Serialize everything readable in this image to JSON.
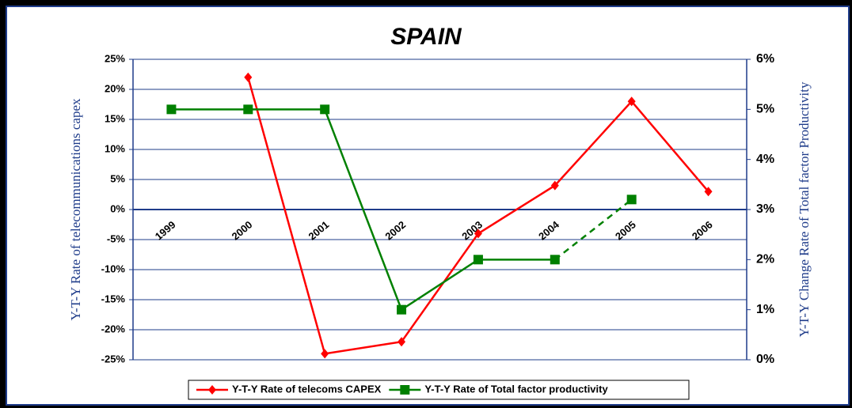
{
  "chart_data": {
    "type": "line",
    "title": "SPAIN",
    "y_label": "Y-T-Y Rate of telecommunications capex",
    "y2_label": "Y-T-Y Change Rate of Total factor Productivity",
    "categories": [
      "1999",
      "2000",
      "2001",
      "2002",
      "2003",
      "2004",
      "2005",
      "2006"
    ],
    "series": [
      {
        "name": "Y-T-Y Rate of telecoms CAPEX",
        "color": "#ff0000",
        "marker": "diamond",
        "values": [
          null,
          22,
          -24,
          -22,
          -4,
          4,
          18,
          3
        ]
      },
      {
        "name": "Y-T-Y Rate of Total factor productivity",
        "color": "#008000",
        "marker": "square",
        "axis": "y2",
        "dashed_last_segment": true,
        "values": [
          5,
          5,
          5,
          1,
          2,
          2,
          3.2,
          null
        ]
      }
    ],
    "ylim": [
      -25,
      25
    ],
    "yticks": [
      {
        "value": -25,
        "label": "-25%"
      },
      {
        "value": -20,
        "label": "-20%"
      },
      {
        "value": -15,
        "label": "-15%"
      },
      {
        "value": -10,
        "label": "-10%"
      },
      {
        "value": -5,
        "label": "-5%"
      },
      {
        "value": 0,
        "label": "0%"
      },
      {
        "value": 5,
        "label": "5%"
      },
      {
        "value": 10,
        "label": "10%"
      },
      {
        "value": 15,
        "label": "15%"
      },
      {
        "value": 20,
        "label": "20%"
      },
      {
        "value": 25,
        "label": "25%"
      }
    ],
    "y2lim": [
      0,
      6
    ],
    "y2ticks": [
      {
        "value": 0,
        "label": "0%"
      },
      {
        "value": 1,
        "label": "1%"
      },
      {
        "value": 2,
        "label": "2%"
      },
      {
        "value": 3,
        "label": "3%"
      },
      {
        "value": 4,
        "label": "4%"
      },
      {
        "value": 5,
        "label": "5%"
      },
      {
        "value": 6,
        "label": "6%"
      }
    ],
    "grid": true,
    "legend": "bottom"
  }
}
